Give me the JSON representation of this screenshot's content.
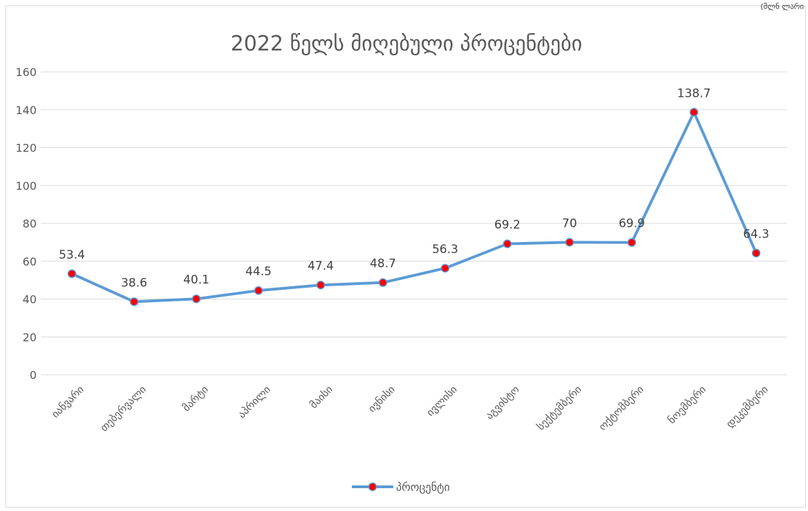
{
  "corner_text": "(მლნ ლარი",
  "chart_data": {
    "type": "line",
    "title": "2022 წელს მიღებული პროცენტები",
    "categories": [
      "იანვარი",
      "თებერვალი",
      "მარტი",
      "აპრილი",
      "მაისი",
      "ივნისი",
      "ივლისი",
      "აგვისტო",
      "სექტემბერი",
      "ოქტომბერი",
      "ნოემბერი",
      "დეკემბერი"
    ],
    "series": [
      {
        "name": "პროცენტი",
        "values": [
          53.4,
          38.6,
          40.1,
          44.5,
          47.4,
          48.7,
          56.3,
          69.2,
          70,
          69.9,
          138.7,
          64.3
        ],
        "labels": [
          "53.4",
          "38.6",
          "40.1",
          "44.5",
          "47.4",
          "48.7",
          "56.3",
          "69.2",
          "70",
          "69.9",
          "138.7",
          "64.3"
        ],
        "line_color": "#5b9bd5",
        "marker_color": "#ff0000"
      }
    ],
    "ylim": [
      0,
      160
    ],
    "yticks": [
      0,
      20,
      40,
      60,
      80,
      100,
      120,
      140,
      160
    ],
    "xlabel": "",
    "ylabel": "",
    "grid": true,
    "legend_position": "bottom"
  }
}
